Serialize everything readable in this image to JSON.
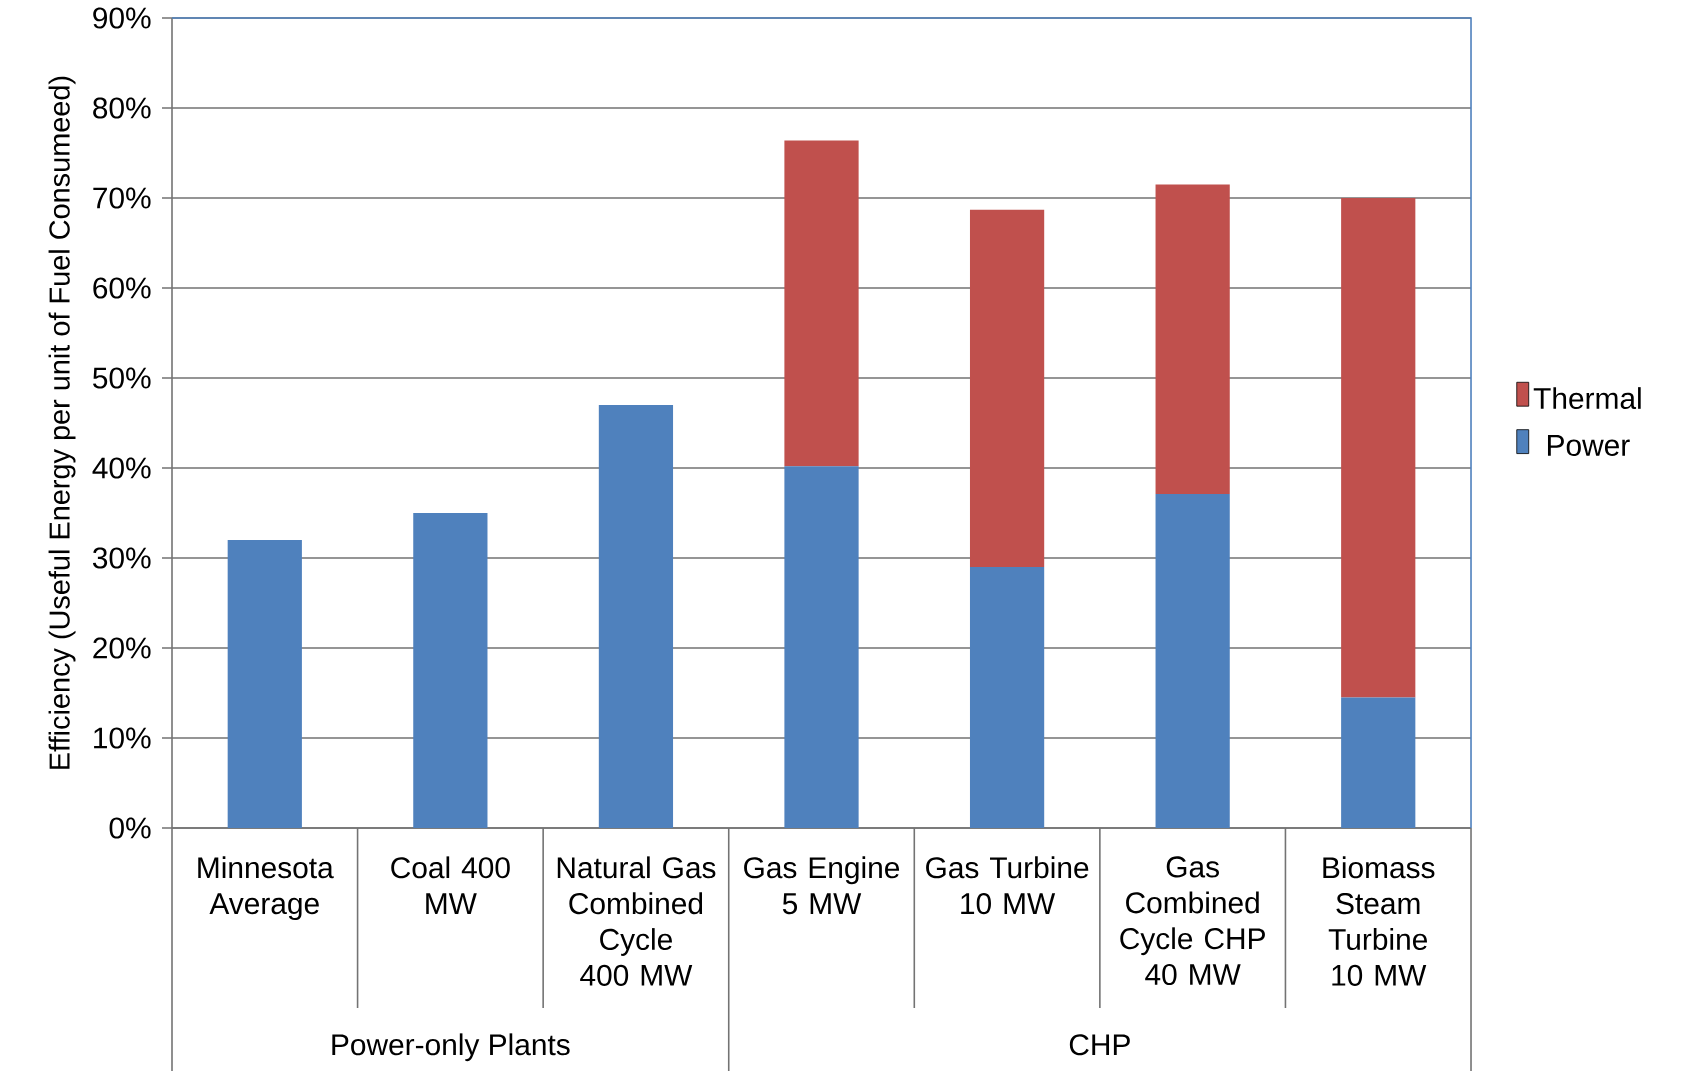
{
  "chart_data": {
    "type": "bar",
    "stacked": true,
    "ylabel": "Efficiency (Useful Energy per unit of Fuel Consumeed)",
    "categories": [
      "Minnesota Average",
      "Coal 400 MW",
      "Natural Gas Combined Cycle 400 MW",
      "Gas Engine 5 MW",
      "Gas Turbine 10 MW",
      "Gas Combined Cycle CHP 40 MW",
      "Biomass Steam Turbine 10 MW"
    ],
    "series": [
      {
        "name": "Power",
        "color": "#4f81bd",
        "values": [
          32.0,
          35.0,
          47.0,
          40.2,
          29.0,
          37.1,
          14.5
        ]
      },
      {
        "name": "Thermal",
        "color": "#c0504d",
        "values": [
          null,
          null,
          null,
          36.2,
          39.7,
          34.4,
          55.5
        ]
      }
    ],
    "ylim": [
      0,
      90
    ],
    "yticks": [
      {
        "value": 0,
        "label": "0%"
      },
      {
        "value": 10,
        "label": "10%"
      },
      {
        "value": 20,
        "label": "20%"
      },
      {
        "value": 30,
        "label": "30%"
      },
      {
        "value": 40,
        "label": "40%"
      },
      {
        "value": 50,
        "label": "50%"
      },
      {
        "value": 60,
        "label": "60%"
      },
      {
        "value": 70,
        "label": "70%"
      },
      {
        "value": 80,
        "label": "80%"
      },
      {
        "value": 90,
        "label": "90%"
      }
    ],
    "grid": "y",
    "legend": "right",
    "annotations": [
      "Power-only Plants",
      "CHP"
    ]
  }
}
